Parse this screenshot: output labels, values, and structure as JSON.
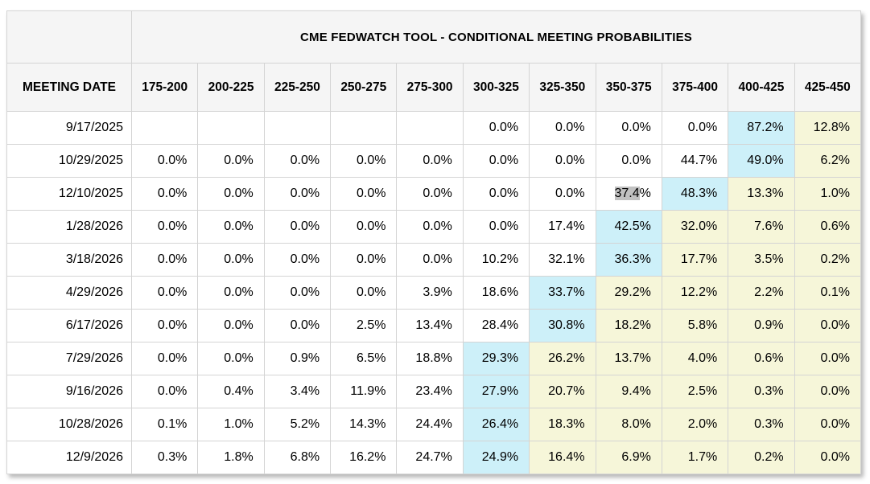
{
  "table": {
    "title": "CME FEDWATCH TOOL - CONDITIONAL MEETING PROBABILITIES",
    "row_header": "MEETING DATE",
    "columns": [
      "175-200",
      "200-225",
      "225-250",
      "250-275",
      "275-300",
      "300-325",
      "325-350",
      "350-375",
      "375-400",
      "400-425",
      "425-450"
    ],
    "rows": [
      {
        "date": "9/17/2025",
        "cells": [
          {
            "v": ""
          },
          {
            "v": ""
          },
          {
            "v": ""
          },
          {
            "v": ""
          },
          {
            "v": ""
          },
          {
            "v": "0.0%"
          },
          {
            "v": "0.0%"
          },
          {
            "v": "0.0%"
          },
          {
            "v": "0.0%"
          },
          {
            "v": "87.2%",
            "hl": "cyan"
          },
          {
            "v": "12.8%",
            "hl": "yellow"
          }
        ]
      },
      {
        "date": "10/29/2025",
        "cells": [
          {
            "v": "0.0%"
          },
          {
            "v": "0.0%"
          },
          {
            "v": "0.0%"
          },
          {
            "v": "0.0%"
          },
          {
            "v": "0.0%"
          },
          {
            "v": "0.0%"
          },
          {
            "v": "0.0%"
          },
          {
            "v": "0.0%"
          },
          {
            "v": "44.7%"
          },
          {
            "v": "49.0%",
            "hl": "cyan"
          },
          {
            "v": "6.2%",
            "hl": "yellow"
          }
        ]
      },
      {
        "date": "12/10/2025",
        "cells": [
          {
            "v": "0.0%"
          },
          {
            "v": "0.0%"
          },
          {
            "v": "0.0%"
          },
          {
            "v": "0.0%"
          },
          {
            "v": "0.0%"
          },
          {
            "v": "0.0%"
          },
          {
            "v": "0.0%"
          },
          {
            "v": "37.4%",
            "sel": "37.4",
            "rest": "%"
          },
          {
            "v": "48.3%",
            "hl": "cyan"
          },
          {
            "v": "13.3%",
            "hl": "yellow"
          },
          {
            "v": "1.0%",
            "hl": "yellow"
          }
        ]
      },
      {
        "date": "1/28/2026",
        "cells": [
          {
            "v": "0.0%"
          },
          {
            "v": "0.0%"
          },
          {
            "v": "0.0%"
          },
          {
            "v": "0.0%"
          },
          {
            "v": "0.0%"
          },
          {
            "v": "0.0%"
          },
          {
            "v": "17.4%"
          },
          {
            "v": "42.5%",
            "hl": "cyan"
          },
          {
            "v": "32.0%",
            "hl": "yellow"
          },
          {
            "v": "7.6%",
            "hl": "yellow"
          },
          {
            "v": "0.6%",
            "hl": "yellow"
          }
        ]
      },
      {
        "date": "3/18/2026",
        "cells": [
          {
            "v": "0.0%"
          },
          {
            "v": "0.0%"
          },
          {
            "v": "0.0%"
          },
          {
            "v": "0.0%"
          },
          {
            "v": "0.0%"
          },
          {
            "v": "10.2%"
          },
          {
            "v": "32.1%"
          },
          {
            "v": "36.3%",
            "hl": "cyan"
          },
          {
            "v": "17.7%",
            "hl": "yellow"
          },
          {
            "v": "3.5%",
            "hl": "yellow"
          },
          {
            "v": "0.2%",
            "hl": "yellow"
          }
        ]
      },
      {
        "date": "4/29/2026",
        "cells": [
          {
            "v": "0.0%"
          },
          {
            "v": "0.0%"
          },
          {
            "v": "0.0%"
          },
          {
            "v": "0.0%"
          },
          {
            "v": "3.9%"
          },
          {
            "v": "18.6%"
          },
          {
            "v": "33.7%",
            "hl": "cyan"
          },
          {
            "v": "29.2%",
            "hl": "yellow"
          },
          {
            "v": "12.2%",
            "hl": "yellow"
          },
          {
            "v": "2.2%",
            "hl": "yellow"
          },
          {
            "v": "0.1%",
            "hl": "yellow"
          }
        ]
      },
      {
        "date": "6/17/2026",
        "cells": [
          {
            "v": "0.0%"
          },
          {
            "v": "0.0%"
          },
          {
            "v": "0.0%"
          },
          {
            "v": "2.5%"
          },
          {
            "v": "13.4%"
          },
          {
            "v": "28.4%"
          },
          {
            "v": "30.8%",
            "hl": "cyan"
          },
          {
            "v": "18.2%",
            "hl": "yellow"
          },
          {
            "v": "5.8%",
            "hl": "yellow"
          },
          {
            "v": "0.9%",
            "hl": "yellow"
          },
          {
            "v": "0.0%",
            "hl": "yellow"
          }
        ]
      },
      {
        "date": "7/29/2026",
        "cells": [
          {
            "v": "0.0%"
          },
          {
            "v": "0.0%"
          },
          {
            "v": "0.9%"
          },
          {
            "v": "6.5%"
          },
          {
            "v": "18.8%"
          },
          {
            "v": "29.3%",
            "hl": "cyan"
          },
          {
            "v": "26.2%",
            "hl": "yellow"
          },
          {
            "v": "13.7%",
            "hl": "yellow"
          },
          {
            "v": "4.0%",
            "hl": "yellow"
          },
          {
            "v": "0.6%",
            "hl": "yellow"
          },
          {
            "v": "0.0%",
            "hl": "yellow"
          }
        ]
      },
      {
        "date": "9/16/2026",
        "cells": [
          {
            "v": "0.0%"
          },
          {
            "v": "0.4%"
          },
          {
            "v": "3.4%"
          },
          {
            "v": "11.9%"
          },
          {
            "v": "23.4%"
          },
          {
            "v": "27.9%",
            "hl": "cyan"
          },
          {
            "v": "20.7%",
            "hl": "yellow"
          },
          {
            "v": "9.4%",
            "hl": "yellow"
          },
          {
            "v": "2.5%",
            "hl": "yellow"
          },
          {
            "v": "0.3%",
            "hl": "yellow"
          },
          {
            "v": "0.0%",
            "hl": "yellow"
          }
        ]
      },
      {
        "date": "10/28/2026",
        "cells": [
          {
            "v": "0.1%"
          },
          {
            "v": "1.0%"
          },
          {
            "v": "5.2%"
          },
          {
            "v": "14.3%"
          },
          {
            "v": "24.4%"
          },
          {
            "v": "26.4%",
            "hl": "cyan"
          },
          {
            "v": "18.3%",
            "hl": "yellow"
          },
          {
            "v": "8.0%",
            "hl": "yellow"
          },
          {
            "v": "2.0%",
            "hl": "yellow"
          },
          {
            "v": "0.3%",
            "hl": "yellow"
          },
          {
            "v": "0.0%",
            "hl": "yellow"
          }
        ]
      },
      {
        "date": "12/9/2026",
        "cells": [
          {
            "v": "0.3%"
          },
          {
            "v": "1.8%"
          },
          {
            "v": "6.8%"
          },
          {
            "v": "16.2%"
          },
          {
            "v": "24.7%"
          },
          {
            "v": "24.9%",
            "hl": "cyan"
          },
          {
            "v": "16.4%",
            "hl": "yellow"
          },
          {
            "v": "6.9%",
            "hl": "yellow"
          },
          {
            "v": "1.7%",
            "hl": "yellow"
          },
          {
            "v": "0.2%",
            "hl": "yellow"
          },
          {
            "v": "0.0%",
            "hl": "yellow"
          }
        ]
      }
    ]
  },
  "colors": {
    "cyan_highlight": "#cdf0f9",
    "yellow_highlight": "#f6f6d9",
    "header_background": "#f5f5f5",
    "cell_border": "#d4d4d4",
    "text_selection": "#c1c1c1"
  },
  "chart_data": {
    "type": "table",
    "title": "CME FEDWATCH TOOL - CONDITIONAL MEETING PROBABILITIES",
    "row_label": "MEETING DATE",
    "columns": [
      "175-200",
      "200-225",
      "225-250",
      "250-275",
      "275-300",
      "300-325",
      "325-350",
      "350-375",
      "375-400",
      "400-425",
      "425-450"
    ],
    "units": "%",
    "rows": [
      {
        "date": "9/17/2025",
        "values": [
          null,
          null,
          null,
          null,
          null,
          0.0,
          0.0,
          0.0,
          0.0,
          87.2,
          12.8
        ]
      },
      {
        "date": "10/29/2025",
        "values": [
          0.0,
          0.0,
          0.0,
          0.0,
          0.0,
          0.0,
          0.0,
          0.0,
          44.7,
          49.0,
          6.2
        ]
      },
      {
        "date": "12/10/2025",
        "values": [
          0.0,
          0.0,
          0.0,
          0.0,
          0.0,
          0.0,
          0.0,
          37.4,
          48.3,
          13.3,
          1.0
        ]
      },
      {
        "date": "1/28/2026",
        "values": [
          0.0,
          0.0,
          0.0,
          0.0,
          0.0,
          0.0,
          17.4,
          42.5,
          32.0,
          7.6,
          0.6
        ]
      },
      {
        "date": "3/18/2026",
        "values": [
          0.0,
          0.0,
          0.0,
          0.0,
          0.0,
          10.2,
          32.1,
          36.3,
          17.7,
          3.5,
          0.2
        ]
      },
      {
        "date": "4/29/2026",
        "values": [
          0.0,
          0.0,
          0.0,
          0.0,
          3.9,
          18.6,
          33.7,
          29.2,
          12.2,
          2.2,
          0.1
        ]
      },
      {
        "date": "6/17/2026",
        "values": [
          0.0,
          0.0,
          0.0,
          2.5,
          13.4,
          28.4,
          30.8,
          18.2,
          5.8,
          0.9,
          0.0
        ]
      },
      {
        "date": "7/29/2026",
        "values": [
          0.0,
          0.0,
          0.9,
          6.5,
          18.8,
          29.3,
          26.2,
          13.7,
          4.0,
          0.6,
          0.0
        ]
      },
      {
        "date": "9/16/2026",
        "values": [
          0.0,
          0.4,
          3.4,
          11.9,
          23.4,
          27.9,
          20.7,
          9.4,
          2.5,
          0.3,
          0.0
        ]
      },
      {
        "date": "10/28/2026",
        "values": [
          0.1,
          1.0,
          5.2,
          14.3,
          24.4,
          26.4,
          18.3,
          8.0,
          2.0,
          0.3,
          0.0
        ]
      },
      {
        "date": "12/9/2026",
        "values": [
          0.3,
          1.8,
          6.8,
          16.2,
          24.7,
          24.9,
          16.4,
          6.9,
          1.7,
          0.2,
          0.0
        ]
      }
    ],
    "highlight_legend": {
      "cyan": "highest probability cell in each row",
      "yellow": "cells to the right of the row maximum",
      "gray_selection": "user text selection on '37.4' in row 12/10/2025 column 350-375"
    }
  }
}
